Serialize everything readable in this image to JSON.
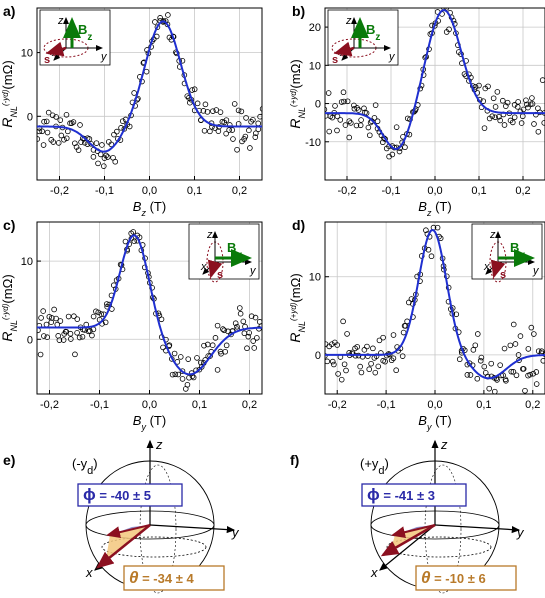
{
  "panel_letters": [
    "a)",
    "b)",
    "c)",
    "d)",
    "e)",
    "f)"
  ],
  "colors": {
    "fit": "#1f2fd0",
    "field": "#0a7a0a",
    "spin": "#8b1020",
    "ellipse": "#8b1020",
    "phi": "#2a2aa8",
    "theta": "#b87a2a",
    "phi_fill": "#7c7cc4",
    "theta_fill": "#f3c77c"
  },
  "chart_data": [
    {
      "type": "scatter",
      "panel": "a)",
      "xlabel": "B",
      "xlabel_sub": "z",
      "xunit": " (T)",
      "ylabel_main": "R",
      "ylabel_sub": "NL",
      "ylabel_sup": "(-yd)",
      "ylabel_unit": "(mΩ)",
      "xlim": [
        -0.25,
        0.25
      ],
      "ylim": [
        -10,
        17
      ],
      "xticks": [
        -0.2,
        -0.1,
        0.0,
        0.1,
        0.2
      ],
      "xtick_labels": [
        "-0,2",
        "-0,1",
        "0,0",
        "0,1",
        "0,2"
      ],
      "yticks": [
        0,
        10
      ],
      "ytick_labels": [
        "0",
        "10"
      ],
      "fit": {
        "center": 0.03,
        "amp": 16.5,
        "width": 0.055,
        "dip_pos": -0.1,
        "dip_amp": -4.0,
        "dip_width": 0.05,
        "offset": -1.6,
        "slope": -0.3
      },
      "inset": {
        "field": "B",
        "field_sub": "z",
        "orientation": "z",
        "axes": [
          "z",
          "y",
          "x"
        ],
        "spin": "s"
      }
    },
    {
      "type": "scatter",
      "panel": "b)",
      "xlabel": "B",
      "xlabel_sub": "z",
      "xunit": " (T)",
      "ylabel_main": "R",
      "ylabel_sub": "NL",
      "ylabel_sup": "(+yd)",
      "ylabel_unit": "(mΩ)",
      "xlim": [
        -0.25,
        0.25
      ],
      "ylim": [
        -20,
        25
      ],
      "xticks": [
        -0.2,
        -0.1,
        0.0,
        0.1,
        0.2
      ],
      "xtick_labels": [
        "-0,2",
        "-0,1",
        "0,0",
        "0,1",
        "0,2"
      ],
      "yticks": [
        -10,
        0,
        10,
        20
      ],
      "ytick_labels": [
        "-10",
        "0",
        "10",
        "20"
      ],
      "fit": {
        "center": 0.02,
        "amp": 27,
        "width": 0.055,
        "dip_pos": -0.085,
        "dip_amp": -10,
        "dip_width": 0.045,
        "offset": -2.5,
        "slope": 14
      },
      "inset": {
        "field": "B",
        "field_sub": "z",
        "orientation": "z",
        "axes": [
          "z",
          "y",
          "x"
        ],
        "spin": "s"
      }
    },
    {
      "type": "scatter",
      "panel": "c)",
      "xlabel": "B",
      "xlabel_sub": "y",
      "xunit": " (T)",
      "ylabel_main": "R",
      "ylabel_sub": "NL",
      "ylabel_sup": "(-yd)",
      "ylabel_unit": "(mΩ)",
      "xlim": [
        -0.225,
        0.225
      ],
      "ylim": [
        -7,
        15
      ],
      "xticks": [
        -0.2,
        -0.1,
        0.0,
        0.1,
        0.2
      ],
      "xtick_labels": [
        "-0,2",
        "-0,1",
        "0,0",
        "0,1",
        "0,2"
      ],
      "yticks": [
        0,
        10
      ],
      "ytick_labels": [
        "0",
        "10"
      ],
      "fit": {
        "center": -0.03,
        "amp": 12,
        "width": 0.04,
        "dip_pos": 0.08,
        "dip_amp": -6,
        "dip_width": 0.06,
        "offset": 1.5,
        "slope": 0
      },
      "inset": {
        "field": "B",
        "field_sub": "y",
        "orientation": "y",
        "axes": [
          "z",
          "y",
          "x"
        ],
        "spin": "s"
      }
    },
    {
      "type": "scatter",
      "panel": "d)",
      "xlabel": "B",
      "xlabel_sub": "y",
      "xunit": " (T)",
      "ylabel_main": "R",
      "ylabel_sub": "NL",
      "ylabel_sup": "(+yd)",
      "ylabel_unit": "(mΩ)",
      "xlim": [
        -0.225,
        0.225
      ],
      "ylim": [
        -5,
        17
      ],
      "xticks": [
        -0.2,
        -0.1,
        0.0,
        0.1,
        0.2
      ],
      "xtick_labels": [
        "-0,2",
        "-0,1",
        "0,0",
        "0,1",
        "0,2"
      ],
      "yticks": [
        0,
        10
      ],
      "ytick_labels": [
        "0",
        "10"
      ],
      "fit": {
        "center": -0.005,
        "amp": 16,
        "width": 0.04,
        "dip_pos": 0.11,
        "dip_amp": -3,
        "dip_width": 0.05,
        "offset": 0,
        "slope": 0
      },
      "inset": {
        "field": "B",
        "field_sub": "y",
        "orientation": "y",
        "axes": [
          "z",
          "y",
          "x"
        ],
        "spin": "s"
      }
    }
  ],
  "spheres": [
    {
      "panel": "e)",
      "label_main": "(-y",
      "label_sub": "d",
      "label_end": ")",
      "phi_symbol": "ϕ",
      "phi_value": "= -40 ± 5",
      "theta_symbol": "θ",
      "theta_value": "= -34 ± 4",
      "axes": [
        "z",
        "y",
        "x"
      ]
    },
    {
      "panel": "f)",
      "label_main": "(+y",
      "label_sub": "d",
      "label_end": ")",
      "phi_symbol": "ϕ",
      "phi_value": "= -41 ± 3",
      "theta_symbol": "θ",
      "theta_value": "= -10 ± 6",
      "axes": [
        "z",
        "y",
        "x"
      ]
    }
  ]
}
